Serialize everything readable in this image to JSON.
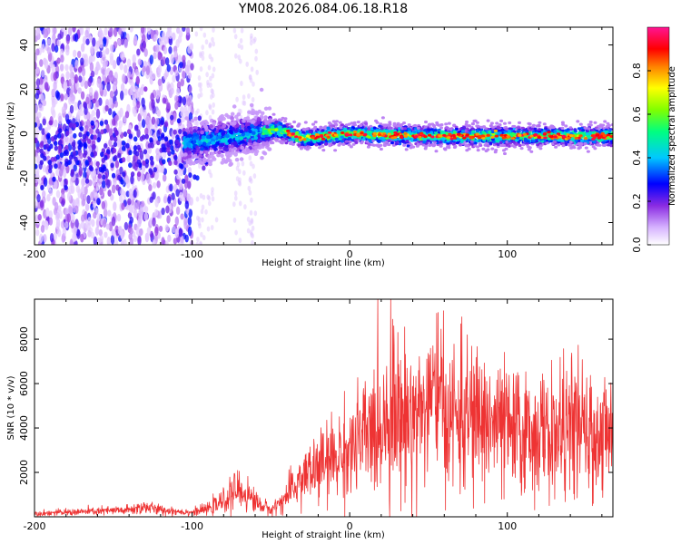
{
  "chart_data": [
    {
      "type": "heatmap",
      "title": "YM08.2026.084.06.18.R18",
      "xlabel": "Height of straight line (km)",
      "ylabel": "Frequency (Hz)",
      "xlim": [
        -200,
        167
      ],
      "ylim": [
        -50,
        48
      ],
      "xticks": [
        -200,
        -100,
        0,
        100
      ],
      "yticks": [
        -40,
        -20,
        0,
        20,
        40
      ],
      "colorbar": {
        "label": "Normalized spectral amplitude",
        "range": [
          0,
          1
        ],
        "ticks": [
          0.0,
          0.2,
          0.4,
          0.6,
          0.8
        ],
        "tick_labels": [
          "0.0",
          "0.2",
          "0.4",
          "0.6",
          "0.8"
        ],
        "colors": [
          "#ffffff",
          "#a020f0",
          "#0000ff",
          "#00ffff",
          "#00ff00",
          "#ffff00",
          "#ff0000",
          "#ff00a0"
        ]
      },
      "description_regions": [
        {
          "x_range": [
            -200,
            -100
          ],
          "freq_spread": 48,
          "amplitude": 0.15
        },
        {
          "x_range": [
            -100,
            -55
          ],
          "freq_spread": 8,
          "amplitude": 0.35
        },
        {
          "x_range": [
            -55,
            167
          ],
          "freq_spread": 4,
          "amplitude": 0.6
        }
      ],
      "ridge": {
        "x": [
          -200,
          -150,
          -100,
          -60,
          -45,
          -30,
          0,
          50,
          100,
          167
        ],
        "freq": [
          -6,
          -8,
          -4,
          0,
          2,
          -2,
          0,
          -1,
          -1,
          -1
        ]
      }
    },
    {
      "type": "line",
      "xlabel": "Height of straight line (km)",
      "ylabel": "SNR (10 * v/v)",
      "xlim": [
        -200,
        167
      ],
      "ylim": [
        0,
        9800
      ],
      "xticks": [
        -200,
        -100,
        0,
        100
      ],
      "yticks": [
        2000,
        4000,
        6000,
        8000
      ],
      "color": "#ee3333",
      "series": [
        {
          "name": "SNR",
          "x": [
            -200,
            -180,
            -160,
            -140,
            -130,
            -120,
            -100,
            -90,
            -80,
            -72,
            -65,
            -58,
            -50,
            -40,
            -30,
            -20,
            -10,
            0,
            10,
            20,
            25,
            30,
            40,
            50,
            55,
            60,
            70,
            80,
            90,
            100,
            110,
            120,
            130,
            140,
            145,
            150,
            160,
            167
          ],
          "y": [
            150,
            200,
            250,
            300,
            450,
            300,
            200,
            350,
            700,
            1200,
            1000,
            600,
            300,
            900,
            1800,
            2200,
            2600,
            3000,
            3600,
            4200,
            4800,
            4500,
            4600,
            5000,
            5200,
            4600,
            4400,
            4500,
            4200,
            3900,
            3700,
            3800,
            3600,
            4000,
            4200,
            3500,
            3600,
            3600
          ]
        }
      ],
      "peaks": [
        {
          "x": 26,
          "y": 9800
        },
        {
          "x": 56,
          "y": 9200
        },
        {
          "x": 28,
          "y": 8600
        },
        {
          "x": 135,
          "y": 6200
        }
      ]
    }
  ]
}
